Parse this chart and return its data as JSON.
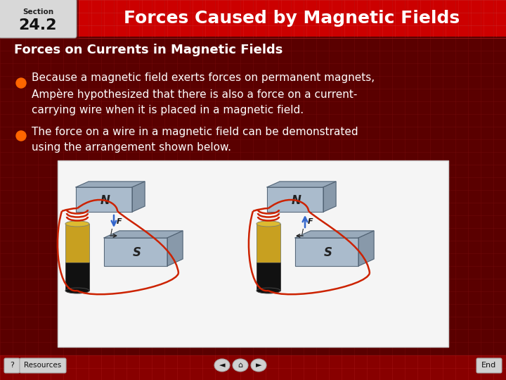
{
  "bg_color": "#5a0000",
  "header_dark_bg": "#7a0000",
  "header_bright_bg": "#cc0000",
  "header_text": "Forces Caused by Magnetic Fields",
  "section_label": "Section",
  "section_number": "24.2",
  "subtitle": "Forces on Currents in Magnetic Fields",
  "bullet1_line1": "Because a magnetic field exerts forces on permanent magnets,",
  "bullet1_line2": "Ampère hypothesized that there is also a force on a current-",
  "bullet1_line3": "carrying wire when it is placed in a magnetic field.",
  "bullet2_line1": "The force on a wire in a magnetic field can be demonstrated",
  "bullet2_line2": "using the arrangement shown below.",
  "bullet_color": "#ff6600",
  "text_color": "#ffffff",
  "subtitle_color": "#ffffff",
  "grid_color_dark": "#991111",
  "grid_color_bright": "#dd3333",
  "image_bg": "#f5f5f5",
  "magnet_top": "#9aaabb",
  "magnet_front": "#aabbcc",
  "magnet_side": "#7a8d9a",
  "magnet_edge": "#667788",
  "battery_gold": "#c8a020",
  "battery_dark": "#1a1a1a",
  "wire_color": "#cc2200",
  "arrow_color": "#3366cc",
  "footer_bg": "#880000"
}
